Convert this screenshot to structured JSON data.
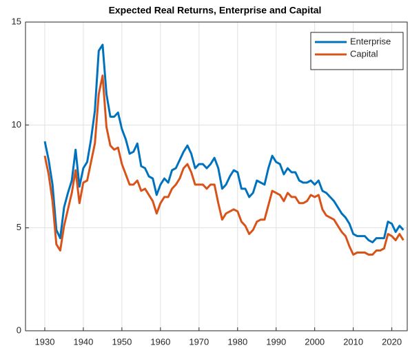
{
  "chart_data": {
    "type": "line",
    "title": "Expected Real Returns, Enterprise and Capital",
    "x": [
      1930,
      1931,
      1932,
      1933,
      1934,
      1935,
      1936,
      1937,
      1938,
      1939,
      1940,
      1941,
      1942,
      1943,
      1944,
      1945,
      1946,
      1947,
      1948,
      1949,
      1950,
      1951,
      1952,
      1953,
      1954,
      1955,
      1956,
      1957,
      1958,
      1959,
      1960,
      1961,
      1962,
      1963,
      1964,
      1965,
      1966,
      1967,
      1968,
      1969,
      1970,
      1971,
      1972,
      1973,
      1974,
      1975,
      1976,
      1977,
      1978,
      1979,
      1980,
      1981,
      1982,
      1983,
      1984,
      1985,
      1986,
      1987,
      1988,
      1989,
      1990,
      1991,
      1992,
      1993,
      1994,
      1995,
      1996,
      1997,
      1998,
      1999,
      2000,
      2001,
      2002,
      2003,
      2004,
      2005,
      2006,
      2007,
      2008,
      2009,
      2010,
      2011,
      2012,
      2013,
      2014,
      2015,
      2016,
      2017,
      2018,
      2019,
      2020,
      2021,
      2022,
      2023
    ],
    "series": [
      {
        "name": "Enterprise",
        "color": "#0072bd",
        "values": [
          9.2,
          8.3,
          7.1,
          4.9,
          4.5,
          6.0,
          6.7,
          7.3,
          8.8,
          7.0,
          7.9,
          8.2,
          9.3,
          10.7,
          13.6,
          13.9,
          11.5,
          10.4,
          10.4,
          10.6,
          9.8,
          9.3,
          8.6,
          8.7,
          9.1,
          8.0,
          7.9,
          7.5,
          7.4,
          6.6,
          7.1,
          7.4,
          7.2,
          7.8,
          7.9,
          8.3,
          8.7,
          9.0,
          8.6,
          7.9,
          8.1,
          8.1,
          7.9,
          8.1,
          8.4,
          7.9,
          6.9,
          7.1,
          7.5,
          7.8,
          7.7,
          6.9,
          6.9,
          6.5,
          6.7,
          7.3,
          7.2,
          7.1,
          7.9,
          8.5,
          8.2,
          8.1,
          7.6,
          7.9,
          7.7,
          7.7,
          7.3,
          7.2,
          7.2,
          7.3,
          7.1,
          7.3,
          6.8,
          6.7,
          6.5,
          6.3,
          6.0,
          5.7,
          5.5,
          5.2,
          4.7,
          4.6,
          4.6,
          4.6,
          4.4,
          4.3,
          4.5,
          4.5,
          4.5,
          5.3,
          5.2,
          4.8,
          5.1,
          4.9
        ]
      },
      {
        "name": "Capital",
        "color": "#d95319",
        "values": [
          8.5,
          7.6,
          6.3,
          4.2,
          3.9,
          5.1,
          5.9,
          6.7,
          7.8,
          6.2,
          7.2,
          7.3,
          8.2,
          9.1,
          11.5,
          12.4,
          9.9,
          9.0,
          8.8,
          8.9,
          8.1,
          7.6,
          7.1,
          7.1,
          7.3,
          6.8,
          6.9,
          6.6,
          6.3,
          5.7,
          6.2,
          6.5,
          6.5,
          6.9,
          7.1,
          7.4,
          7.9,
          8.1,
          7.7,
          7.1,
          7.1,
          7.1,
          6.9,
          7.1,
          7.1,
          6.2,
          5.4,
          5.7,
          5.8,
          5.9,
          5.8,
          5.3,
          5.1,
          4.7,
          4.9,
          5.3,
          5.4,
          5.4,
          6.1,
          6.8,
          6.7,
          6.6,
          6.3,
          6.7,
          6.5,
          6.5,
          6.2,
          6.2,
          6.3,
          6.6,
          6.5,
          6.6,
          5.9,
          5.6,
          5.5,
          5.4,
          5.1,
          4.8,
          4.6,
          4.1,
          3.7,
          3.8,
          3.8,
          3.8,
          3.7,
          3.7,
          3.9,
          3.9,
          4.0,
          4.7,
          4.6,
          4.4,
          4.7,
          4.4
        ]
      }
    ],
    "xlim": [
      1925,
      2024
    ],
    "xticks": [
      1930,
      1940,
      1950,
      1960,
      1970,
      1980,
      1990,
      2000,
      2010,
      2020
    ],
    "ylim": [
      0,
      15
    ],
    "yticks": [
      0,
      5,
      10,
      15
    ],
    "grid": true,
    "legend": "northeast"
  }
}
